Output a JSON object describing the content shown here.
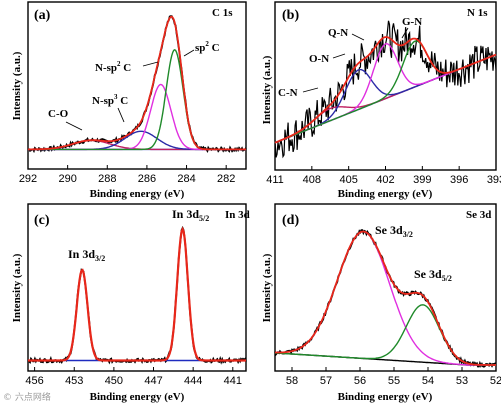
{
  "colors": {
    "raw": "#000000",
    "fit": "#e8271a",
    "background": "#1f2bbf",
    "magenta": "#e030e0",
    "green": "#1f8a2a",
    "navy": "#2b2ba8",
    "purple": "#c02060",
    "axis": "#000000"
  },
  "watermark": "© 六点网络",
  "chart_data": [
    {
      "type": "line",
      "panel_label": "(a)",
      "element_label": "C 1s",
      "xlabel": "Binding energy (eV)",
      "ylabel": "Intensity (a.u.)",
      "xlim": [
        292,
        281
      ],
      "xticks": [
        292,
        290,
        288,
        286,
        284,
        282
      ],
      "ylim": [
        0,
        1
      ],
      "baseline": 0.09,
      "peaks": [
        {
          "name": "C-O",
          "center": 288.8,
          "fwhm": 2.2,
          "height": 0.06,
          "color": "purple"
        },
        {
          "name": "N-sp³ C",
          "center": 286.3,
          "fwhm": 1.9,
          "height": 0.12,
          "color": "navy"
        },
        {
          "name": "N-sp² C",
          "center": 285.3,
          "fwhm": 1.2,
          "height": 0.43,
          "color": "magenta"
        },
        {
          "name": "sp² C",
          "center": 284.6,
          "fwhm": 1.0,
          "height": 0.66,
          "color": "green"
        }
      ],
      "annotations": [
        "C-O",
        "N-sp³ C",
        "N-sp² C",
        "sp² C"
      ]
    },
    {
      "type": "line",
      "panel_label": "(b)",
      "element_label": "N 1s",
      "xlabel": "Binding energy (eV)",
      "ylabel": "Intensity (a.u.)",
      "xlim": [
        411,
        393
      ],
      "xticks": [
        411,
        408,
        405,
        402,
        399,
        396,
        393
      ],
      "ylim": [
        0,
        1
      ],
      "baseline_start": 0.14,
      "baseline_end": 0.72,
      "noise": 0.12,
      "peaks": [
        {
          "name": "C-N",
          "center": 406.5,
          "fwhm": 3.0,
          "height": 0.08,
          "color": "purple"
        },
        {
          "name": "O-N",
          "center": 404.2,
          "fwhm": 2.5,
          "height": 0.26,
          "color": "navy"
        },
        {
          "name": "Q-N",
          "center": 402.0,
          "fwhm": 2.3,
          "height": 0.36,
          "color": "magenta"
        },
        {
          "name": "G-N",
          "center": 399.6,
          "fwhm": 2.3,
          "height": 0.3,
          "color": "green"
        }
      ],
      "annotations": [
        "C-N",
        "O-N",
        "Q-N",
        "G-N"
      ]
    },
    {
      "type": "line",
      "panel_label": "(c)",
      "element_label": "In 3d",
      "xlabel": "Binding energy (eV)",
      "ylabel": "Intensity (a.u.)",
      "xlim": [
        456.5,
        440
      ],
      "xticks": [
        456,
        453,
        450,
        447,
        444,
        441
      ],
      "ylim": [
        0,
        1
      ],
      "baseline": 0.03,
      "peaks": [
        {
          "name": "In 3d3/2",
          "center": 452.4,
          "fwhm": 0.95,
          "height": 0.6,
          "color": "fit"
        },
        {
          "name": "In 3d5/2",
          "center": 444.8,
          "fwhm": 0.95,
          "height": 0.87,
          "color": "fit"
        }
      ],
      "annotations": [
        "In 3d3/2",
        "In 3d5/2"
      ]
    },
    {
      "type": "line",
      "panel_label": "(d)",
      "element_label": "Se 3d",
      "xlabel": "Binding energy (eV)",
      "ylabel": "Intensity (a.u.)",
      "xlim": [
        58.5,
        52
      ],
      "xticks": [
        58,
        57,
        56,
        55,
        54,
        53,
        52
      ],
      "ylim": [
        0,
        1
      ],
      "baseline_hi": 0.08,
      "baseline_lo": 0.0,
      "peaks": [
        {
          "name": "Se 3d3/2",
          "center": 55.9,
          "fwhm": 1.8,
          "height": 0.84,
          "color": "magenta"
        },
        {
          "name": "Se 3d5/2",
          "center": 54.15,
          "fwhm": 1.15,
          "height": 0.38,
          "color": "green"
        }
      ],
      "annotations": [
        "Se 3d3/2",
        "Se 3d5/2"
      ]
    }
  ]
}
